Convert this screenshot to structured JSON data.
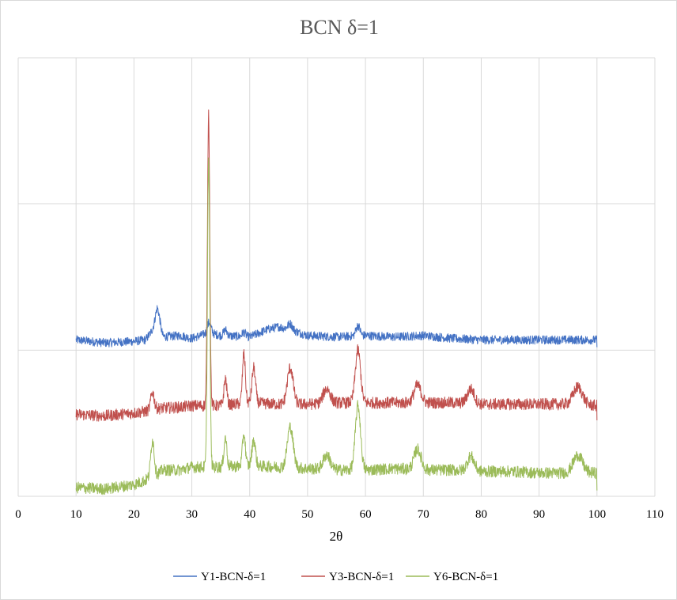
{
  "chart_data": {
    "type": "line",
    "title": "BCN δ=1",
    "xlabel": "2θ",
    "ylabel": "",
    "xlim": [
      0,
      110
    ],
    "xticks": [
      "0",
      "10",
      "20",
      "30",
      "40",
      "50",
      "60",
      "70",
      "80",
      "90",
      "100",
      "110"
    ],
    "ylim": [
      0,
      300
    ],
    "y_tick_labels_shown": false,
    "grid": true,
    "legend_position": "bottom",
    "x_range_measured": [
      10,
      100
    ],
    "series": [
      {
        "name": "Y1-BCN-δ=1",
        "color": "#4472c4",
        "baseline": 106,
        "noise": 3,
        "points": [
          [
            10,
            107
          ],
          [
            15,
            105
          ],
          [
            20,
            106
          ],
          [
            22,
            107
          ],
          [
            24,
            118
          ],
          [
            25,
            109
          ],
          [
            28,
            110
          ],
          [
            30,
            108
          ],
          [
            33,
            112
          ],
          [
            35,
            110
          ],
          [
            40,
            109
          ],
          [
            43,
            114
          ],
          [
            45,
            116
          ],
          [
            47,
            114
          ],
          [
            50,
            110
          ],
          [
            55,
            109
          ],
          [
            60,
            110
          ],
          [
            65,
            109
          ],
          [
            70,
            110
          ],
          [
            75,
            108
          ],
          [
            80,
            107
          ],
          [
            90,
            107
          ],
          [
            100,
            107
          ]
        ],
        "peaks": [
          [
            24.1,
            11,
            0.4
          ],
          [
            33.0,
            7,
            0.3
          ],
          [
            35.8,
            4,
            0.3
          ],
          [
            39.0,
            3,
            0.3
          ],
          [
            47.0,
            4,
            0.4
          ],
          [
            58.7,
            7,
            0.35
          ]
        ]
      },
      {
        "name": "Y3-BCN-δ=1",
        "color": "#c0504d",
        "baseline": 56,
        "noise": 4,
        "points": [
          [
            10,
            56
          ],
          [
            15,
            55
          ],
          [
            20,
            57
          ],
          [
            22,
            58
          ],
          [
            24,
            60
          ],
          [
            28,
            61
          ],
          [
            30,
            62
          ],
          [
            35,
            62
          ],
          [
            40,
            64
          ],
          [
            45,
            63
          ],
          [
            50,
            63
          ],
          [
            55,
            64
          ],
          [
            60,
            64
          ],
          [
            65,
            64
          ],
          [
            70,
            64
          ],
          [
            75,
            64
          ],
          [
            80,
            63
          ],
          [
            85,
            63
          ],
          [
            90,
            63
          ],
          [
            95,
            63
          ],
          [
            100,
            62
          ]
        ],
        "peaks": [
          [
            23.2,
            12,
            0.3
          ],
          [
            32.9,
            200,
            0.2
          ],
          [
            35.8,
            18,
            0.25
          ],
          [
            39.0,
            34,
            0.25
          ],
          [
            40.7,
            24,
            0.3
          ],
          [
            47.0,
            25,
            0.5
          ],
          [
            53.3,
            10,
            0.6
          ],
          [
            58.7,
            36,
            0.45
          ],
          [
            69.0,
            12,
            0.6
          ],
          [
            78.2,
            10,
            0.6
          ],
          [
            96.7,
            12,
            0.8
          ]
        ]
      },
      {
        "name": "Y6-BCN-δ=1",
        "color": "#9bbb59",
        "baseline": 8,
        "noise": 4,
        "points": [
          [
            10,
            6
          ],
          [
            15,
            5
          ],
          [
            20,
            8
          ],
          [
            22,
            11
          ],
          [
            24,
            15
          ],
          [
            25,
            18
          ],
          [
            28,
            18
          ],
          [
            30,
            20
          ],
          [
            35,
            20
          ],
          [
            40,
            21
          ],
          [
            45,
            20
          ],
          [
            50,
            19
          ],
          [
            55,
            18
          ],
          [
            60,
            18
          ],
          [
            65,
            19
          ],
          [
            70,
            18
          ],
          [
            75,
            18
          ],
          [
            80,
            17
          ],
          [
            85,
            17
          ],
          [
            90,
            16
          ],
          [
            95,
            16
          ],
          [
            100,
            16
          ]
        ],
        "peaks": [
          [
            23.2,
            25,
            0.3
          ],
          [
            32.9,
            210,
            0.2
          ],
          [
            35.8,
            20,
            0.25
          ],
          [
            39.0,
            22,
            0.25
          ],
          [
            40.7,
            18,
            0.3
          ],
          [
            47.0,
            28,
            0.5
          ],
          [
            53.3,
            10,
            0.6
          ],
          [
            58.7,
            44,
            0.45
          ],
          [
            69.0,
            14,
            0.6
          ],
          [
            78.2,
            10,
            0.6
          ],
          [
            96.7,
            12,
            0.8
          ]
        ]
      }
    ]
  }
}
